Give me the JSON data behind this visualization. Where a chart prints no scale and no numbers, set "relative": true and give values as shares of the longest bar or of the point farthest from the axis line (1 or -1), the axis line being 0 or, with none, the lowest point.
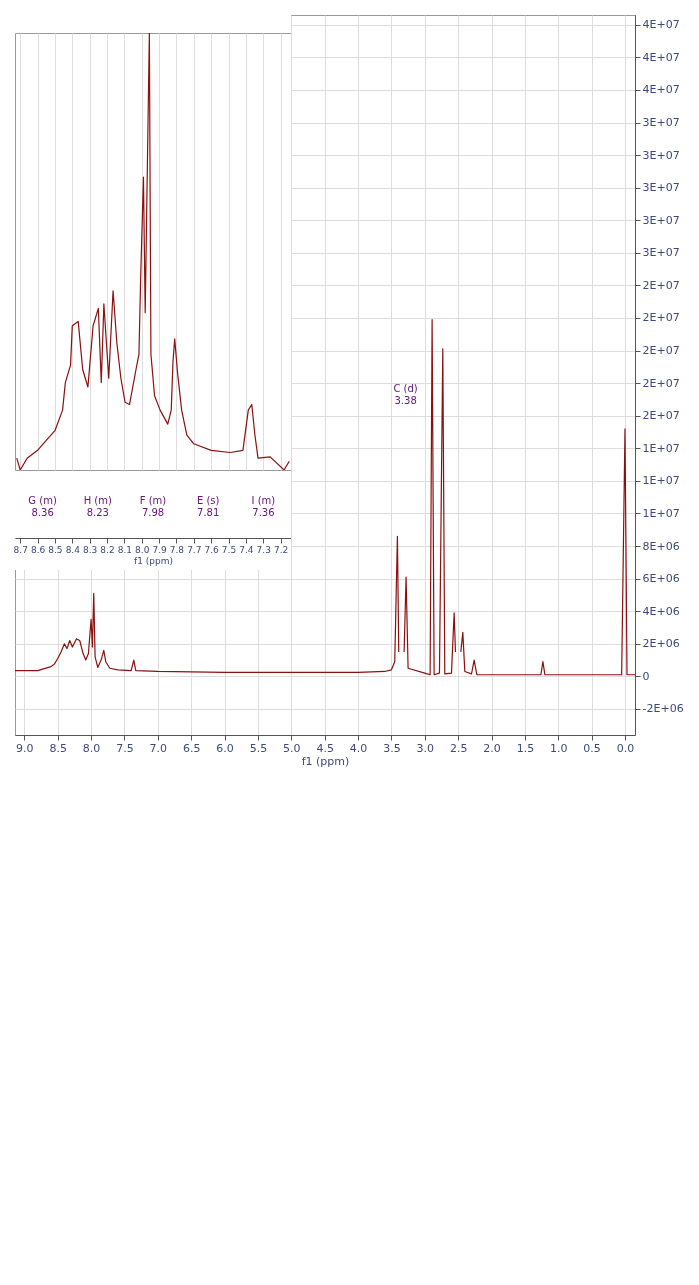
{
  "chart_data": [
    {
      "type": "line",
      "xlabel": "f1 (ppm)",
      "xlim": [
        9.14,
        -0.15
      ],
      "xticks": [
        {
          "value": 9,
          "label": "9.0"
        },
        8.5,
        {
          "value": 8,
          "label": "8.0"
        },
        7.5,
        {
          "value": 7,
          "label": "7.0"
        },
        6.5,
        {
          "value": 6,
          "label": "6.0"
        },
        5.5,
        {
          "value": 5,
          "label": "5.0"
        },
        4.5,
        {
          "value": 4,
          "label": "4.0"
        },
        3.5,
        {
          "value": 3,
          "label": "3.0"
        },
        2.5,
        {
          "value": 2,
          "label": "2.0"
        },
        1.5,
        {
          "value": 1,
          "label": "1.0"
        },
        0.5,
        {
          "value": 0,
          "label": "0.0"
        }
      ],
      "ylim": [
        -3600000,
        40600000
      ],
      "yticks": [
        {
          "value": -2000000,
          "label": "-2E+06"
        },
        0,
        {
          "value": 2000000,
          "label": "2E+06"
        },
        {
          "value": 4000000,
          "label": "4E+06"
        },
        {
          "value": 6000000,
          "label": "6E+06"
        },
        {
          "value": 8000000,
          "label": "8E+06"
        },
        {
          "value": 10000000,
          "label": "1E+07"
        },
        {
          "value": 12000000,
          "label": "1E+07"
        },
        {
          "value": 14000000,
          "label": "1E+07"
        },
        {
          "value": 16000000,
          "label": "2E+07"
        },
        {
          "value": 18000000,
          "label": "2E+07"
        },
        {
          "value": 20000000,
          "label": "2E+07"
        },
        {
          "value": 22000000,
          "label": "2E+07"
        },
        {
          "value": 24000000,
          "label": "2E+07"
        },
        {
          "value": 26000000,
          "label": "3E+07"
        },
        {
          "value": 28000000,
          "label": "3E+07"
        },
        {
          "value": 30000000,
          "label": "3E+07"
        },
        {
          "value": 32000000,
          "label": "3E+07"
        },
        {
          "value": 34000000,
          "label": "3E+07"
        },
        {
          "value": 36000000,
          "label": "4E+07"
        },
        {
          "value": 38000000,
          "label": "4E+07"
        },
        {
          "value": 40000000,
          "label": "4E+07"
        }
      ],
      "grid": true,
      "annotations": [
        "C (d)\n3.38"
      ],
      "series": [
        {
          "color": "#8b1010",
          "x": [
            9.14,
            9.0,
            8.8,
            8.6,
            8.55,
            8.5,
            8.45,
            8.4,
            8.36,
            8.32,
            8.28,
            8.22,
            8.17,
            8.12,
            8.08,
            8.04,
            8.0,
            7.98,
            7.96,
            7.94,
            7.9,
            7.85,
            7.81,
            7.78,
            7.72,
            7.6,
            7.4,
            7.36,
            7.33,
            7.0,
            6.0,
            5.0,
            4.0,
            3.6,
            3.5,
            3.45,
            3.41,
            3.39,
            3.36,
            3.33,
            3.31,
            3.28,
            3.25,
            3.0,
            2.92,
            2.89,
            2.86,
            2.78,
            2.73,
            2.7,
            2.6,
            2.56,
            2.54,
            2.52,
            2.49,
            2.46,
            2.43,
            2.4,
            2.3,
            2.26,
            2.22,
            1.5,
            1.26,
            1.23,
            1.2,
            0.5,
            0.05,
            0.0,
            -0.03,
            -0.15
          ],
          "values": [
            350000,
            350000,
            350000,
            600000,
            750000,
            1100000,
            1500000,
            2000000,
            1700000,
            2200000,
            1800000,
            2300000,
            2200000,
            1400000,
            1000000,
            1400000,
            3500000,
            1800000,
            5100000,
            1200000,
            550000,
            1000000,
            1600000,
            900000,
            500000,
            400000,
            350000,
            1000000,
            350000,
            300000,
            250000,
            250000,
            250000,
            300000,
            400000,
            900000,
            8600000,
            1500000,
            null,
            null,
            1500000,
            6100000,
            500000,
            200000,
            100000,
            21900000,
            100000,
            200000,
            20100000,
            150000,
            200000,
            3900000,
            1500000,
            null,
            null,
            1500000,
            2700000,
            300000,
            150000,
            1000000,
            100000,
            100000,
            100000,
            900000,
            100000,
            100000,
            100000,
            15200000,
            100000,
            100000
          ]
        }
      ]
    },
    {
      "type": "line",
      "xlabel": "f1 (ppm)",
      "xlim": [
        8.73,
        7.14
      ],
      "xticks": [
        8.7,
        8.6,
        8.5,
        8.4,
        8.3,
        8.2,
        8.1,
        {
          "value": 8,
          "label": "8.0"
        },
        7.9,
        7.8,
        7.7,
        7.6,
        7.5,
        7.4,
        7.3,
        7.2
      ],
      "relative": true,
      "grid": "x",
      "tick_labels": "x",
      "annotations": [
        "G (m)\n8.36",
        "H (m)\n8.23",
        "F (m)\n7.98",
        "E (s)\n7.81",
        "I (m)\n7.36"
      ],
      "series": [
        {
          "color": "#8b1010",
          "x": [
            8.72,
            8.7,
            8.66,
            8.6,
            8.55,
            8.5,
            8.456,
            8.44,
            8.41,
            8.4,
            8.366,
            8.34,
            8.31,
            8.28,
            8.25,
            8.233,
            8.218,
            8.19,
            8.165,
            8.143,
            8.12,
            8.096,
            8.07,
            8.033,
            8.016,
            8.006,
            7.99,
            7.98,
            7.956,
            7.947,
            7.926,
            7.894,
            7.85,
            7.83,
            7.82,
            7.81,
            7.793,
            7.77,
            7.74,
            7.7,
            7.6,
            7.49,
            7.417,
            7.386,
            7.366,
            7.348,
            7.33,
            7.26,
            7.18,
            7.15
          ],
          "values": [
            0.027,
            0.0,
            0.027,
            0.045,
            0.068,
            0.09,
            0.137,
            0.2,
            0.24,
            0.33,
            0.34,
            0.23,
            0.19,
            0.33,
            0.37,
            0.2,
            0.38,
            0.21,
            0.41,
            0.29,
            0.21,
            0.155,
            0.15,
            0.23,
            0.265,
            0.44,
            0.67,
            0.36,
            1.0,
            0.265,
            0.17,
            0.137,
            0.105,
            0.137,
            0.247,
            0.3,
            0.22,
            0.137,
            0.08,
            0.06,
            0.045,
            0.04,
            0.045,
            0.137,
            0.15,
            0.08,
            0.027,
            0.03,
            0.0,
            0.02
          ]
        }
      ]
    }
  ]
}
